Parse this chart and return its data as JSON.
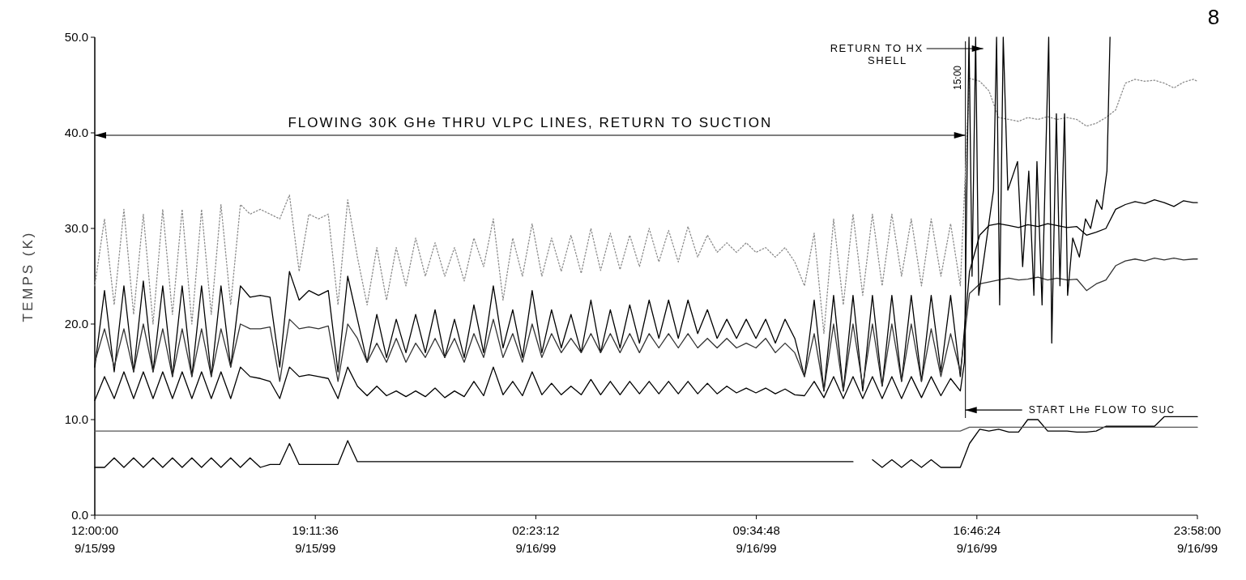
{
  "chart_data": {
    "type": "line",
    "ylabel": "TEMPS (K)",
    "xlim": [
      "1999-09-15T12:00",
      "1999-09-16T23:58"
    ],
    "ylim": [
      0,
      50
    ],
    "xticks": [
      {
        "value": "1999-09-15T12:00",
        "label": "12:00:00\n9/15/99"
      },
      {
        "value": "1999-09-15T19:11:36",
        "label": "19:11:36\n9/15/99"
      },
      {
        "value": "1999-09-16T02:23:12",
        "label": "02:23:12\n9/16/99"
      },
      {
        "value": "1999-09-16T09:34:48",
        "label": "09:34:48\n9/16/99"
      },
      {
        "value": "1999-09-16T16:46:24",
        "label": "16:46:24\n9/16/99"
      },
      {
        "value": "1999-09-16T23:58",
        "label": "23:58:00\n9/16/99"
      }
    ],
    "yticks": [
      {
        "value": 0,
        "label": "0.0"
      },
      {
        "value": 10,
        "label": "10.0"
      },
      {
        "value": 20,
        "label": "20.0"
      },
      {
        "value": 30,
        "label": "30.0"
      },
      {
        "value": 40,
        "label": "40.0"
      },
      {
        "value": 50,
        "label": "50.0"
      }
    ],
    "x": [
      "1999-09-15T12:00",
      "1999-09-15T12:19",
      "1999-09-15T12:38",
      "1999-09-15T12:57",
      "1999-09-15T13:16",
      "1999-09-15T13:35",
      "1999-09-15T13:54",
      "1999-09-15T14:13",
      "1999-09-15T14:32",
      "1999-09-15T14:51",
      "1999-09-15T15:10",
      "1999-09-15T15:29",
      "1999-09-15T15:48",
      "1999-09-15T16:07",
      "1999-09-15T16:26",
      "1999-09-15T16:45",
      "1999-09-15T17:04",
      "1999-09-15T17:24",
      "1999-09-15T17:43",
      "1999-09-15T18:02",
      "1999-09-15T18:21",
      "1999-09-15T18:40",
      "1999-09-15T18:59",
      "1999-09-15T19:18",
      "1999-09-15T19:37",
      "1999-09-15T19:56",
      "1999-09-15T20:15",
      "1999-09-15T20:34",
      "1999-09-15T20:53",
      "1999-09-15T21:12",
      "1999-09-15T21:31",
      "1999-09-15T21:50",
      "1999-09-15T22:09",
      "1999-09-15T22:28",
      "1999-09-15T22:47",
      "1999-09-15T23:06",
      "1999-09-15T23:25",
      "1999-09-15T23:44",
      "1999-09-16T00:03",
      "1999-09-16T00:22",
      "1999-09-16T00:41",
      "1999-09-16T01:00",
      "1999-09-16T01:19",
      "1999-09-16T01:38",
      "1999-09-16T01:57",
      "1999-09-16T02:16",
      "1999-09-16T02:35",
      "1999-09-16T02:54",
      "1999-09-16T03:13",
      "1999-09-16T03:32",
      "1999-09-16T03:52",
      "1999-09-16T04:11",
      "1999-09-16T04:30",
      "1999-09-16T04:49",
      "1999-09-16T05:08",
      "1999-09-16T05:27",
      "1999-09-16T05:46",
      "1999-09-16T06:05",
      "1999-09-16T06:24",
      "1999-09-16T06:43",
      "1999-09-16T07:02",
      "1999-09-16T07:21",
      "1999-09-16T07:40",
      "1999-09-16T07:59",
      "1999-09-16T08:18",
      "1999-09-16T08:37",
      "1999-09-16T08:56",
      "1999-09-16T09:15",
      "1999-09-16T09:34",
      "1999-09-16T09:53",
      "1999-09-16T10:12",
      "1999-09-16T10:31",
      "1999-09-16T10:50",
      "1999-09-16T11:09",
      "1999-09-16T11:28",
      "1999-09-16T11:47",
      "1999-09-16T12:06",
      "1999-09-16T12:25",
      "1999-09-16T12:44",
      "1999-09-16T13:03",
      "1999-09-16T13:22",
      "1999-09-16T13:41",
      "1999-09-16T14:00",
      "1999-09-16T14:19",
      "1999-09-16T14:38",
      "1999-09-16T14:58",
      "1999-09-16T15:17",
      "1999-09-16T15:36",
      "1999-09-16T15:55",
      "1999-09-16T16:14",
      "1999-09-16T16:32",
      "1999-09-16T16:52",
      "1999-09-16T17:10",
      "1999-09-16T17:29",
      "1999-09-16T17:49",
      "1999-09-16T18:08",
      "1999-09-16T18:26",
      "1999-09-16T18:46",
      "1999-09-16T19:05",
      "1999-09-16T19:23",
      "1999-09-16T19:43",
      "1999-09-16T20:02",
      "1999-09-16T20:21",
      "1999-09-16T20:40",
      "1999-09-16T20:59",
      "1999-09-16T21:18",
      "1999-09-16T21:37",
      "1999-09-16T21:56",
      "1999-09-16T22:15",
      "1999-09-16T22:34",
      "1999-09-16T22:53",
      "1999-09-16T23:12",
      "1999-09-16T23:31",
      "1999-09-16T23:50",
      "1999-09-16T23:58"
    ],
    "series": [
      {
        "color": "#8c8c8c",
        "line_style": "dotted",
        "values": [
          24,
          31,
          22,
          32,
          21,
          31.5,
          20,
          32,
          21,
          32,
          20,
          32,
          21,
          32.5,
          22,
          32.5,
          31.5,
          32,
          31.5,
          31,
          33.5,
          25.5,
          31.5,
          31,
          31.5,
          22,
          33,
          27,
          22,
          28,
          22.5,
          28,
          24,
          29,
          25,
          28.5,
          25,
          28,
          24.5,
          29,
          26,
          31,
          22.5,
          29,
          25,
          30.5,
          25,
          29,
          25.5,
          29.3,
          25.3,
          30,
          25.6,
          29.5,
          25.7,
          29.3,
          26,
          30,
          26.5,
          29.8,
          26.5,
          30.2,
          27,
          29.3,
          27.5,
          28.5,
          27.5,
          28.5,
          27.5,
          28,
          27,
          28,
          26.5,
          24,
          29.5,
          19,
          31,
          22,
          31.5,
          23,
          31.5,
          24,
          31.5,
          25,
          31,
          24,
          31,
          25,
          30.5,
          24,
          45.7,
          45.4,
          44.4,
          41.6,
          41.4,
          41.2,
          41.6,
          41.4,
          41.7,
          41.4,
          41.6,
          41.4,
          40.7,
          41,
          41.6,
          42.4,
          45.2,
          45.6,
          45.4,
          45.5,
          45.2,
          44.7,
          45.3,
          45.6,
          45.4
        ]
      },
      {
        "color": "#000000",
        "values": [
          15.5,
          23.5,
          15,
          24,
          15,
          24.5,
          15,
          24,
          14.5,
          24,
          14.5,
          24,
          14.5,
          24,
          15.5,
          24,
          22.8,
          23,
          22.8,
          15.5,
          25.5,
          22.5,
          23.5,
          23,
          23.5,
          15,
          25,
          20.5,
          16,
          21,
          16.5,
          20.5,
          17,
          21,
          17,
          21.5,
          16.5,
          20.5,
          16.5,
          22,
          17,
          24,
          17.5,
          21.5,
          16.5,
          23.5,
          17,
          21.5,
          17.5,
          21,
          17,
          22.5,
          17,
          21.5,
          17.5,
          22,
          18,
          22.5,
          18.5,
          22.5,
          18.5,
          22.5,
          19,
          21.5,
          18.5,
          20.5,
          18.5,
          20.5,
          18.5,
          20.5,
          18,
          20.5,
          18.5,
          14.5,
          22.5,
          13,
          23,
          13,
          23,
          13,
          23,
          13.5,
          23,
          14,
          23,
          14,
          23,
          15,
          23,
          14.5,
          25.5,
          29.3,
          30.3,
          30.5,
          30.3,
          30.1,
          30.4,
          30.2,
          30.5,
          30.3,
          30.1,
          30.2,
          29.3,
          29.6,
          30,
          32,
          32.5,
          32.8,
          32.6,
          33,
          32.7,
          32.3,
          32.9,
          32.7,
          32.7
        ]
      },
      {
        "color": "#333333",
        "values": [
          16,
          19.5,
          15.5,
          19.5,
          15,
          20,
          15,
          19.5,
          14.5,
          19.5,
          14.5,
          19.5,
          14.5,
          19.5,
          15.5,
          20,
          19.5,
          19.5,
          19.7,
          14,
          20.5,
          19.5,
          19.7,
          19.5,
          19.8,
          14,
          20,
          18.5,
          16,
          18,
          16,
          18.5,
          16,
          18,
          16.5,
          18.5,
          16.5,
          18.5,
          16,
          19,
          16.5,
          20.5,
          16.5,
          19,
          16,
          20,
          16.5,
          19,
          17,
          18.5,
          17,
          19,
          17,
          19,
          17,
          19,
          17,
          19,
          17.5,
          19,
          17.5,
          19,
          17.5,
          18.5,
          17.5,
          18.5,
          17.5,
          18,
          17.5,
          18.5,
          17,
          18,
          17,
          14.5,
          19,
          13,
          20,
          13,
          20,
          13.5,
          20,
          13.5,
          20,
          14,
          20,
          14,
          19.5,
          14.5,
          19,
          15,
          23.2,
          24.2,
          24.4,
          24.6,
          24.8,
          24.6,
          24.7,
          24.9,
          24.6,
          24.8,
          24.6,
          24.7,
          23.5,
          24.2,
          24.6,
          26.1,
          26.6,
          26.8,
          26.6,
          26.9,
          26.7,
          26.9,
          26.7,
          26.8,
          26.8
        ]
      },
      {
        "color": "#000000",
        "x": [
          "1999-09-15T12:00",
          "1999-09-15T12:19",
          "1999-09-15T12:38",
          "1999-09-15T12:57",
          "1999-09-15T13:16",
          "1999-09-15T13:35",
          "1999-09-15T13:54",
          "1999-09-15T14:13",
          "1999-09-15T14:32",
          "1999-09-15T14:51",
          "1999-09-15T15:10",
          "1999-09-15T15:29",
          "1999-09-15T15:48",
          "1999-09-15T16:07",
          "1999-09-15T16:26",
          "1999-09-15T16:45",
          "1999-09-15T17:04",
          "1999-09-15T17:24",
          "1999-09-15T17:43",
          "1999-09-15T18:02",
          "1999-09-15T18:21",
          "1999-09-15T18:40",
          "1999-09-15T18:59",
          "1999-09-15T19:18",
          "1999-09-15T19:37",
          "1999-09-15T19:56",
          "1999-09-15T20:15",
          "1999-09-15T20:34",
          "1999-09-15T20:53",
          "1999-09-15T21:12",
          "1999-09-15T21:31",
          "1999-09-15T21:50",
          "1999-09-15T22:09",
          "1999-09-15T22:28",
          "1999-09-15T22:47",
          "1999-09-15T23:06",
          "1999-09-15T23:25",
          "1999-09-15T23:44",
          "1999-09-16T00:03",
          "1999-09-16T00:22",
          "1999-09-16T00:41",
          "1999-09-16T01:00",
          "1999-09-16T01:19",
          "1999-09-16T01:38",
          "1999-09-16T01:57",
          "1999-09-16T02:16",
          "1999-09-16T02:35",
          "1999-09-16T02:54",
          "1999-09-16T03:13",
          "1999-09-16T03:32",
          "1999-09-16T03:52",
          "1999-09-16T04:11",
          "1999-09-16T04:30",
          "1999-09-16T04:49",
          "1999-09-16T05:08",
          "1999-09-16T05:27",
          "1999-09-16T05:46",
          "1999-09-16T06:05",
          "1999-09-16T06:24",
          "1999-09-16T06:43",
          "1999-09-16T07:02",
          "1999-09-16T07:21",
          "1999-09-16T07:40",
          "1999-09-16T07:59",
          "1999-09-16T08:18",
          "1999-09-16T08:37",
          "1999-09-16T08:56",
          "1999-09-16T09:15",
          "1999-09-16T09:34",
          "1999-09-16T09:53",
          "1999-09-16T10:12",
          "1999-09-16T10:31",
          "1999-09-16T10:50",
          "1999-09-16T11:09",
          "1999-09-16T11:28",
          "1999-09-16T11:47",
          "1999-09-16T12:06",
          "1999-09-16T12:25",
          "1999-09-16T12:44",
          "1999-09-16T13:03",
          "1999-09-16T13:22",
          "1999-09-16T13:41",
          "1999-09-16T14:00",
          "1999-09-16T14:19",
          "1999-09-16T14:38",
          "1999-09-16T14:58",
          "1999-09-16T15:17",
          "1999-09-16T15:36",
          "1999-09-16T15:55",
          "1999-09-16T16:14",
          "1999-09-16T16:22",
          "1999-09-16T16:31",
          "1999-09-16T16:37",
          "1999-09-16T16:44",
          "1999-09-16T16:50",
          "1999-09-16T17:19",
          "1999-09-16T17:25",
          "1999-09-16T17:31",
          "1999-09-16T17:38",
          "1999-09-16T17:47",
          "1999-09-16T18:06",
          "1999-09-16T18:16",
          "1999-09-16T18:28",
          "1999-09-16T18:38",
          "1999-09-16T18:44",
          "1999-09-16T18:54",
          "1999-09-16T19:00",
          "1999-09-16T19:07",
          "1999-09-16T19:13",
          "1999-09-16T19:22",
          "1999-09-16T19:29",
          "1999-09-16T19:38",
          "1999-09-16T19:44",
          "1999-09-16T19:54",
          "1999-09-16T20:07",
          "1999-09-16T20:19",
          "1999-09-16T20:29",
          "1999-09-16T20:41",
          "1999-09-16T20:51",
          "1999-09-16T21:01",
          "1999-09-16T21:07"
        ],
        "values": [
          12,
          14.5,
          12.2,
          15,
          12.2,
          15,
          12.2,
          15,
          12.2,
          15,
          12.2,
          15,
          12.2,
          15,
          12.2,
          15.5,
          14.5,
          14.3,
          14,
          12.2,
          15.5,
          14.5,
          14.7,
          14.5,
          14.3,
          12.2,
          15.5,
          13.5,
          12.5,
          13.5,
          12.5,
          13,
          12.4,
          13,
          12.4,
          13.3,
          12.3,
          13,
          12.4,
          14,
          12.5,
          15.5,
          12.6,
          14,
          12.5,
          15,
          12.6,
          13.8,
          12.6,
          13.5,
          12.6,
          14.2,
          12.6,
          14,
          12.6,
          14,
          12.7,
          14,
          12.7,
          14,
          12.7,
          14,
          12.7,
          13.8,
          12.7,
          13.5,
          12.8,
          13.3,
          12.8,
          13.3,
          12.7,
          13.2,
          12.6,
          12.5,
          14,
          12.3,
          14.5,
          12.2,
          14.5,
          12.2,
          14.5,
          12.2,
          14.5,
          12.2,
          14.5,
          12.3,
          14.5,
          12.5,
          14.3,
          13,
          16,
          50,
          25,
          50,
          23,
          34,
          50,
          22,
          50,
          34,
          37,
          26,
          36,
          23,
          37,
          22,
          35,
          50,
          18,
          42,
          24,
          42,
          23,
          29,
          27,
          31,
          30,
          33,
          32,
          36,
          50
        ]
      },
      {
        "color": "#000000",
        "values": [
          5,
          5,
          6,
          5,
          6,
          5,
          6,
          5,
          6,
          5,
          6,
          5,
          6,
          5,
          6,
          5,
          6,
          5,
          5.3,
          5.3,
          7.5,
          5.3,
          5.3,
          5.3,
          5.3,
          5.3,
          7.8,
          5.6,
          5.6,
          5.6,
          5.6,
          5.6,
          5.6,
          5.6,
          5.6,
          5.6,
          5.6,
          5.6,
          5.6,
          5.6,
          5.6,
          5.6,
          5.6,
          5.6,
          5.6,
          5.6,
          5.6,
          5.6,
          5.6,
          5.6,
          5.6,
          5.6,
          5.6,
          5.6,
          5.6,
          5.6,
          5.6,
          5.6,
          5.6,
          5.6,
          5.6,
          5.6,
          5.6,
          5.6,
          5.6,
          5.6,
          5.6,
          5.6,
          5.6,
          5.6,
          5.6,
          5.6,
          5.6,
          5.6,
          5.6,
          5.6,
          5.6,
          5.6,
          5.6,
          null,
          5.8,
          5,
          5.8,
          5,
          5.8,
          5,
          5.8,
          5,
          5,
          5,
          7.5,
          9,
          8.8,
          9,
          8.7,
          8.7,
          10,
          10,
          8.8,
          8.8,
          8.8,
          8.7,
          8.7,
          8.8,
          9.3,
          9.3,
          9.3,
          9.3,
          9.3,
          9.3,
          10.3,
          10.3,
          10.3,
          10.3,
          10.3
        ]
      },
      {
        "color": "#555555",
        "x": [
          "1999-09-15T12:00",
          "1999-09-16T16:14",
          "1999-09-16T16:32",
          "1999-09-16T23:58"
        ],
        "values": [
          8.8,
          8.8,
          9.2,
          9.2
        ]
      }
    ],
    "ref_lines": [
      {
        "axis": "x",
        "value": "1999-09-16T16:24"
      }
    ],
    "annotations": [
      "FLOWING 30K GHe THRU VLPC LINES, RETURN TO SUCTION",
      "RETURN TO HX\nSHELL",
      {
        "text": "START LHe FLOW TO SUC",
        "x": "1999-09-16T16:24",
        "y": 11
      },
      "15:00",
      "8"
    ]
  }
}
